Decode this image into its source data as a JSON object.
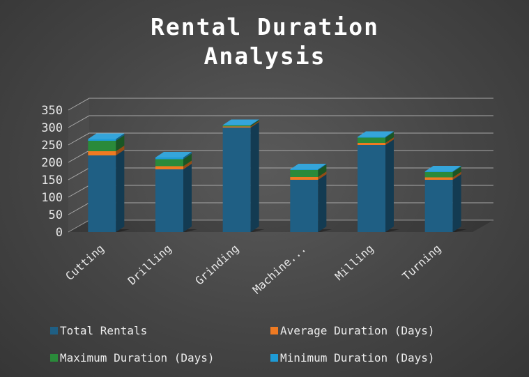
{
  "chart_data": {
    "type": "bar",
    "stacked": true,
    "three_d": true,
    "title": "Rental Duration Analysis",
    "title_lines": [
      "Rental Duration",
      "Analysis"
    ],
    "xlabel": "",
    "ylabel": "",
    "ylim": [
      0,
      350
    ],
    "yticks": [
      0,
      50,
      100,
      150,
      200,
      250,
      300,
      350
    ],
    "grid": true,
    "legend": "bottom",
    "categories": [
      "Cutting",
      "Drilling",
      "Grinding",
      "Machine...",
      "Milling",
      "Turning"
    ],
    "series": [
      {
        "name": "Total Rentals",
        "color": "#1f5f84",
        "values": [
          220,
          180,
          300,
          150,
          250,
          150
        ]
      },
      {
        "name": "Average Duration (Days)",
        "color": "#ef7a22",
        "values": [
          12,
          9,
          3,
          8,
          6,
          7
        ]
      },
      {
        "name": "Maximum Duration (Days)",
        "color": "#2a8a3a",
        "values": [
          30,
          20,
          3,
          20,
          15,
          15
        ]
      },
      {
        "name": "Minimum Duration (Days)",
        "color": "#1e9bd6",
        "values": [
          5,
          5,
          1,
          2,
          2,
          2
        ]
      }
    ]
  }
}
